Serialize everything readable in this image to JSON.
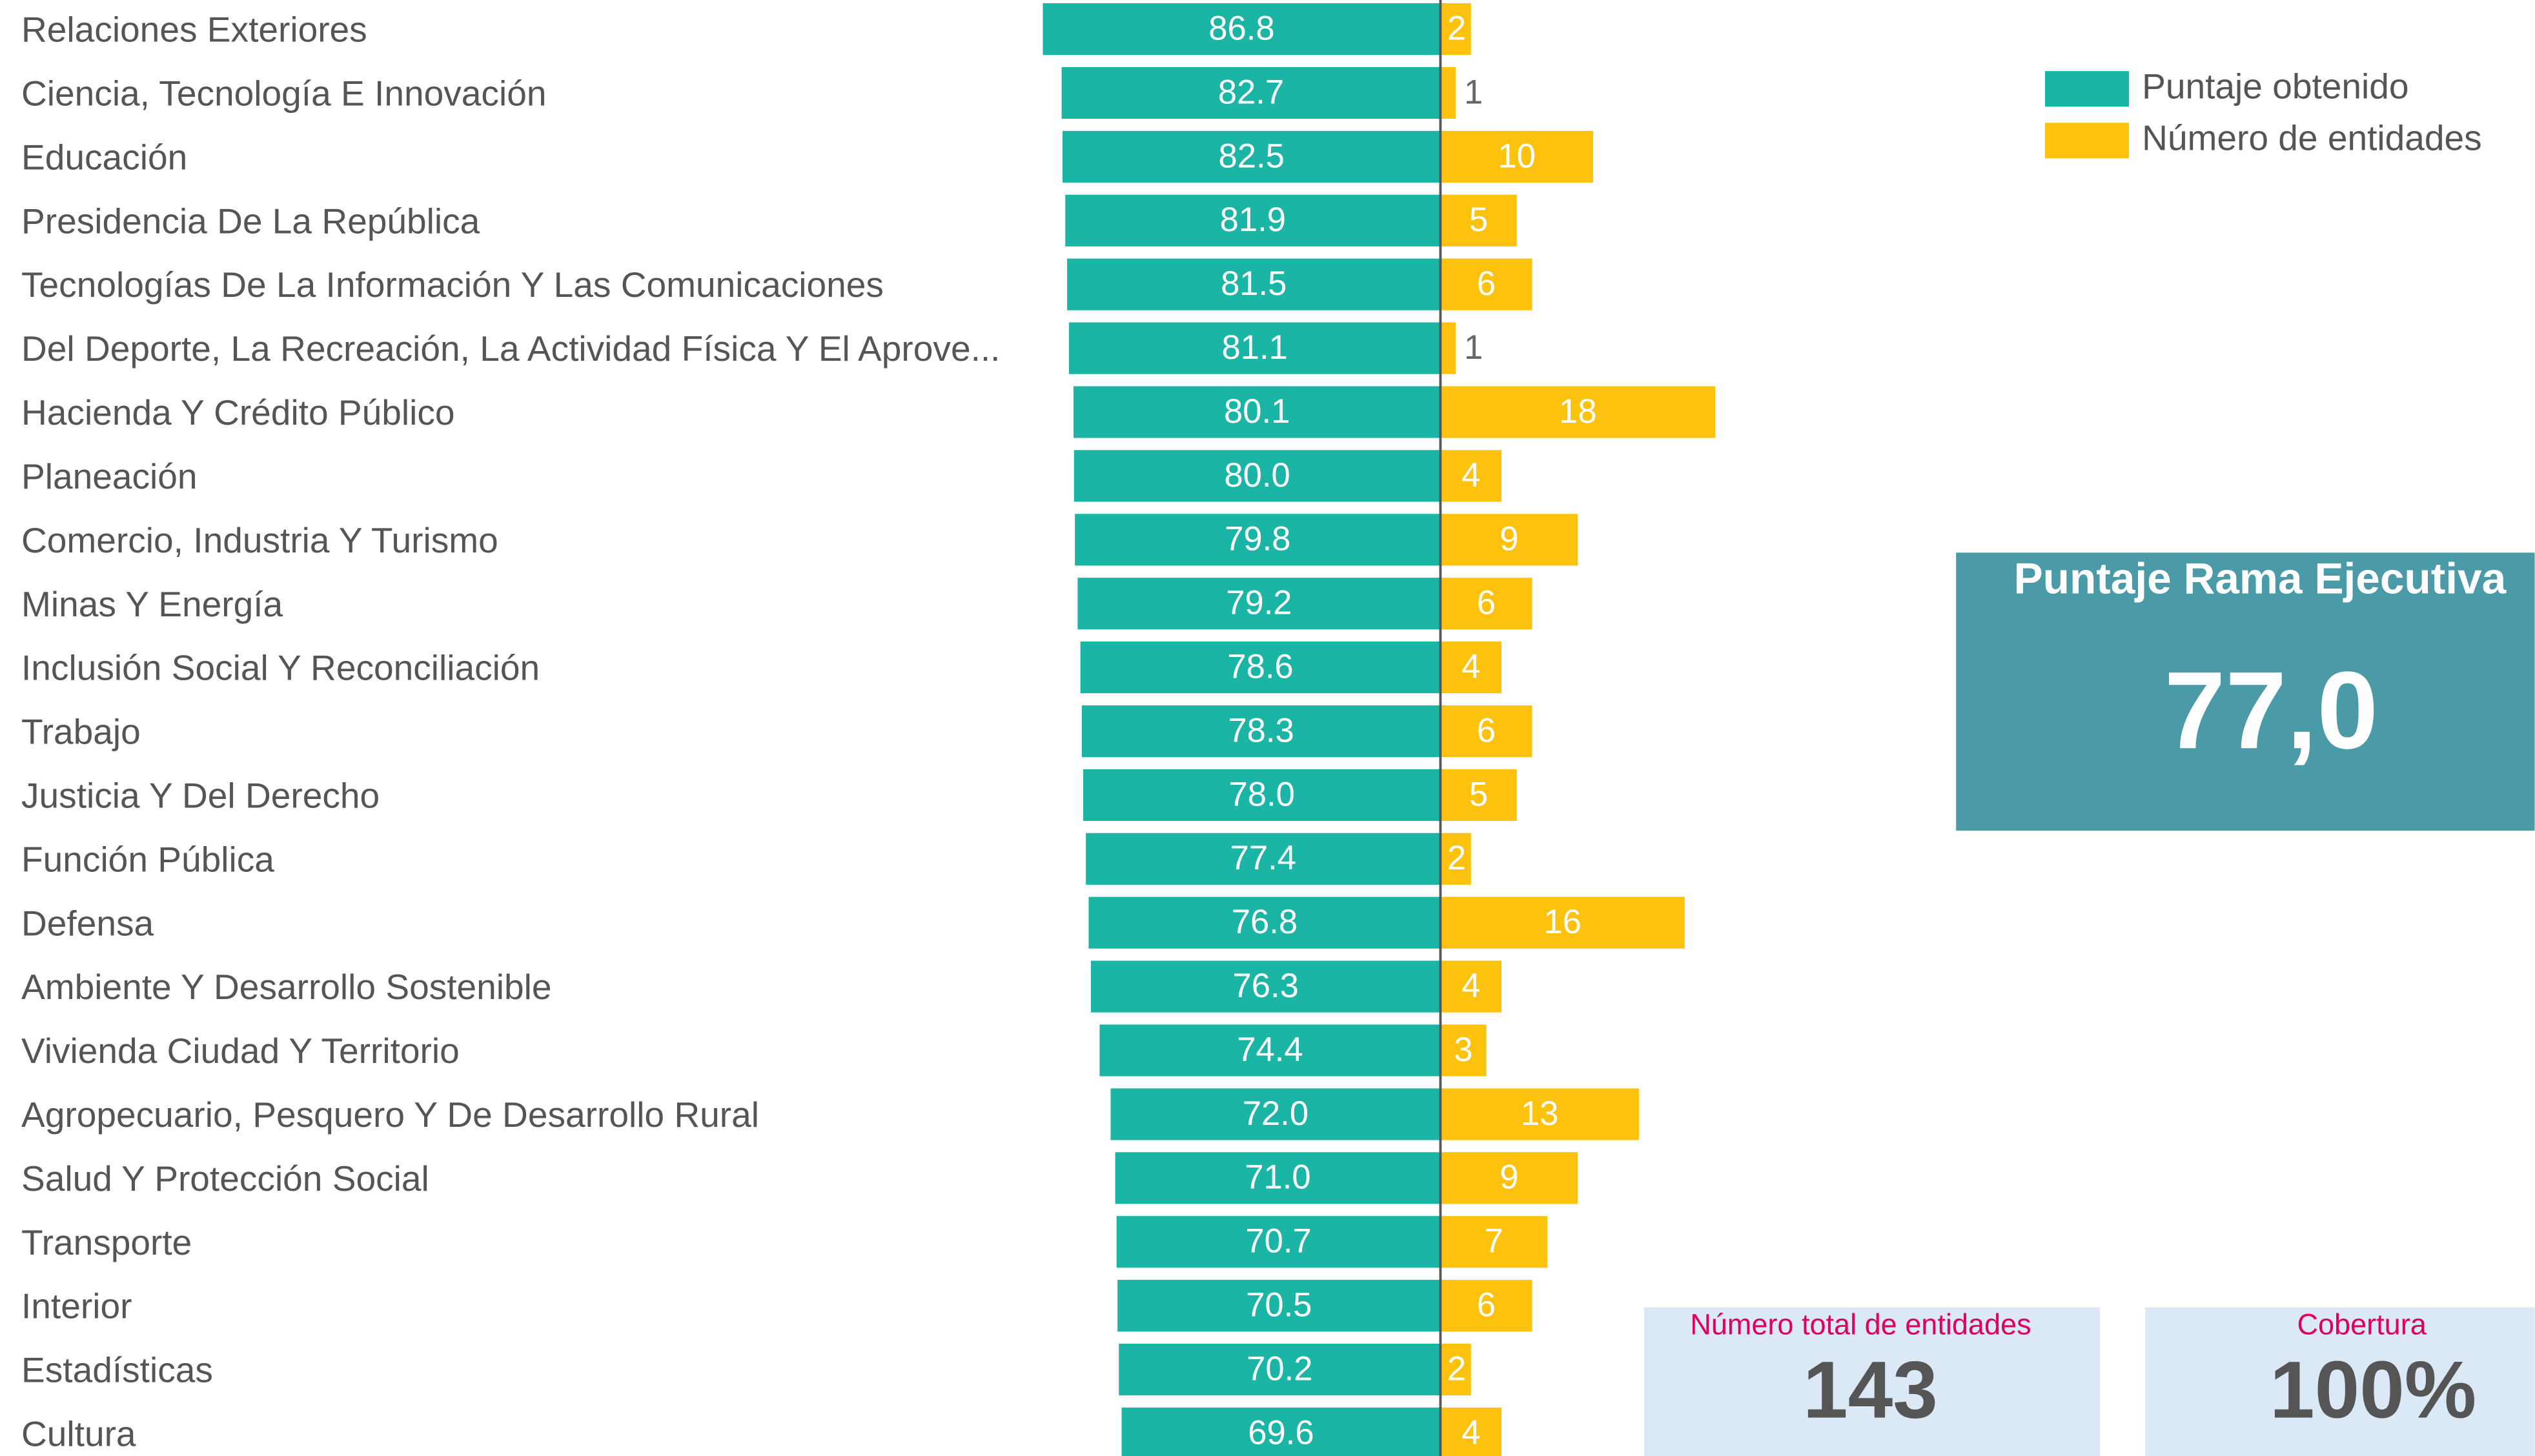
{
  "chart_data": {
    "type": "bar",
    "categories": [
      "Relaciones Exteriores",
      "Ciencia, Tecnología E Innovación",
      "Educación",
      "Presidencia De La República",
      "Tecnologías De La Información Y Las Comunicaciones",
      "Del Deporte, La Recreación, La Actividad Física Y El Aprove...",
      "Hacienda Y Crédito Público",
      "Planeación",
      "Comercio, Industria Y Turismo",
      "Minas Y Energía",
      "Inclusión Social Y Reconciliación",
      "Trabajo",
      "Justicia Y Del Derecho",
      "Función Pública",
      "Defensa",
      "Ambiente Y Desarrollo Sostenible",
      "Vivienda Ciudad Y Territorio",
      "Agropecuario, Pesquero Y De Desarrollo Rural",
      "Salud Y Protección Social",
      "Transporte",
      "Interior",
      "Estadísticas",
      "Cultura"
    ],
    "series": [
      {
        "name": "Puntaje obtenido",
        "color": "#1bb5a6",
        "values": [
          86.8,
          82.7,
          82.5,
          81.9,
          81.5,
          81.1,
          80.1,
          80.0,
          79.8,
          79.2,
          78.6,
          78.3,
          78.0,
          77.4,
          76.8,
          76.3,
          74.4,
          72.0,
          71.0,
          70.7,
          70.5,
          70.2,
          69.6
        ],
        "value_labels": [
          "86.8",
          "82.7",
          "82.5",
          "81.9",
          "81.5",
          "81.1",
          "80.1",
          "80.0",
          "79.8",
          "79.2",
          "78.6",
          "78.3",
          "78.0",
          "77.4",
          "76.8",
          "76.3",
          "74.4",
          "72.0",
          "71.0",
          "70.7",
          "70.5",
          "70.2",
          "69.6"
        ]
      },
      {
        "name": "Número de entidades",
        "color": "#fdc20e",
        "values": [
          2,
          1,
          10,
          5,
          6,
          1,
          18,
          4,
          9,
          6,
          4,
          6,
          5,
          2,
          16,
          4,
          3,
          13,
          9,
          7,
          6,
          2,
          4
        ]
      }
    ]
  },
  "kpis": [
    {
      "title": "Puntaje Rama Ejecutiva",
      "value": "77,0"
    },
    {
      "title": "Número total de entidades",
      "value": "143"
    },
    {
      "title": "Cobertura",
      "value": "100%"
    }
  ]
}
